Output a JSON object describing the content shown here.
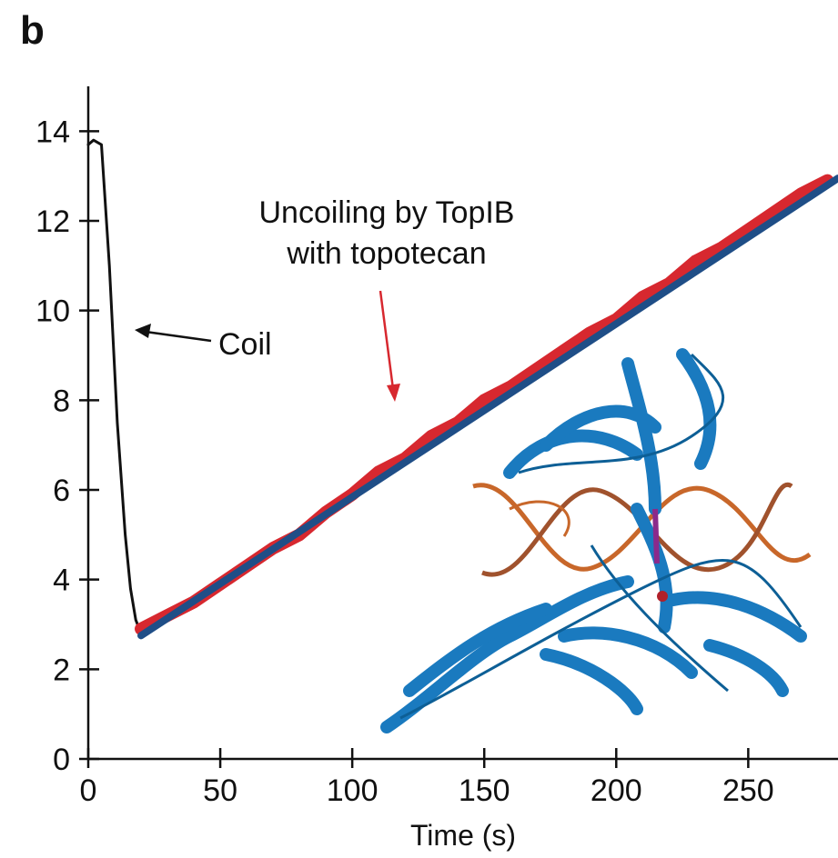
{
  "chart_data": {
    "type": "line",
    "panel_label": "b",
    "xlabel": "Time (s)",
    "xlim": [
      0,
      284
    ],
    "xticks": [
      0,
      50,
      100,
      150,
      200,
      250
    ],
    "ylim": [
      0,
      15
    ],
    "yticks": [
      0,
      2,
      4,
      6,
      8,
      10,
      12,
      14
    ],
    "annotations": [
      {
        "text": "Coil",
        "color": "#111111"
      },
      {
        "text": "Uncoiling by TopIB",
        "color": "#d7282f"
      },
      {
        "text": "with topotecan",
        "color": "#d7282f"
      }
    ],
    "series": [
      {
        "color": "#111111",
        "width": 3,
        "x": [
          0,
          2,
          5,
          8,
          11,
          14,
          16,
          18,
          20
        ],
        "values": [
          13.7,
          13.8,
          13.7,
          11.0,
          7.5,
          5.0,
          3.8,
          3.1,
          2.8
        ]
      },
      {
        "color": "#d7282f",
        "width": 14,
        "x": [
          20,
          30,
          40,
          50,
          60,
          70,
          80,
          90,
          100,
          110,
          120,
          130,
          140,
          150,
          160,
          170,
          180,
          190,
          200,
          210,
          220,
          230,
          240,
          250,
          260,
          270,
          280
        ],
        "values": [
          2.9,
          3.2,
          3.5,
          3.9,
          4.3,
          4.7,
          5.0,
          5.5,
          5.9,
          6.4,
          6.7,
          7.2,
          7.5,
          8.0,
          8.3,
          8.7,
          9.1,
          9.5,
          9.8,
          10.3,
          10.6,
          11.1,
          11.4,
          11.8,
          12.2,
          12.6,
          12.9
        ]
      },
      {
        "color": "#1f4e87",
        "width": 8,
        "x": [
          20,
          284
        ],
        "values": [
          2.75,
          12.95
        ]
      }
    ]
  }
}
